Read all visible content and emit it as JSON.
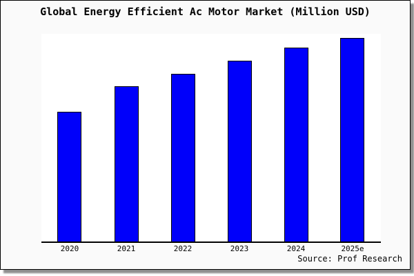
{
  "title": "Global Energy Efficient Ac Motor Market (Million USD)",
  "footer": {
    "source": "Source: Prof Research"
  },
  "colors": {
    "bar_fill": "#0000fa",
    "bar_border": "#000000",
    "frame_background": "#fafafa",
    "plot_background": "#ffffff",
    "axis": "#000000",
    "text": "#000000",
    "shadow": "#8f8f8f"
  },
  "chart_data": {
    "type": "bar",
    "title": "Global Energy Efficient Ac Motor Market (Million USD)",
    "categories": [
      "2020",
      "2021",
      "2022",
      "2023",
      "2024",
      "2025e"
    ],
    "values": [
      62.4,
      74.6,
      80.8,
      87.1,
      93.3,
      98.1
    ],
    "values_unit": "percent of plot height (y-axis has no visible tick labels; values estimated from bar pixel heights)",
    "xlabel": "",
    "ylabel": "",
    "ylim": [
      0,
      100
    ],
    "grid": false,
    "legend": false,
    "y_axis_ticks_visible": false,
    "annotation": "Source: Prof Research"
  }
}
